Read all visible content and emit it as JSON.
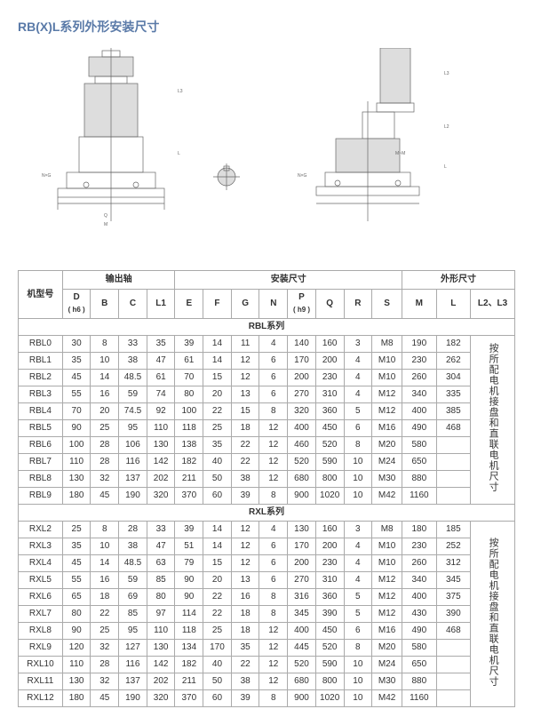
{
  "title": "RB(X)L系列外形安装尺寸",
  "headers": {
    "model": "机型号",
    "groups": {
      "shaft": "输出轴",
      "mount": "安装尺寸",
      "outer": "外形尺寸"
    },
    "cols": {
      "D": "D",
      "D_sub": "( h6 )",
      "B": "B",
      "C": "C",
      "L1": "L1",
      "E": "E",
      "F": "F",
      "G": "G",
      "N": "N",
      "P": "P",
      "P_sub": "( h9 )",
      "Q": "Q",
      "R": "R",
      "S": "S",
      "M": "M",
      "L": "L",
      "L2L3": "L2、L3"
    }
  },
  "sections": {
    "rbl": {
      "title": "RBL系列",
      "side": "按所配电机接盘和直联电机尺寸"
    },
    "rxl": {
      "title": "RXL系列",
      "side": "按所配电机接盘和直联电机尺寸"
    }
  },
  "rbl_rows": [
    {
      "m": "RBL0",
      "D": "30",
      "B": "8",
      "C": "33",
      "L1": "35",
      "E": "39",
      "F": "14",
      "G": "11",
      "N": "4",
      "P": "140",
      "Q": "160",
      "R": "3",
      "S": "M8",
      "M": "190",
      "L": "182"
    },
    {
      "m": "RBL1",
      "D": "35",
      "B": "10",
      "C": "38",
      "L1": "47",
      "E": "61",
      "F": "14",
      "G": "12",
      "N": "6",
      "P": "170",
      "Q": "200",
      "R": "4",
      "S": "M10",
      "M": "230",
      "L": "262"
    },
    {
      "m": "RBL2",
      "D": "45",
      "B": "14",
      "C": "48.5",
      "L1": "61",
      "E": "70",
      "F": "15",
      "G": "12",
      "N": "6",
      "P": "200",
      "Q": "230",
      "R": "4",
      "S": "M10",
      "M": "260",
      "L": "304"
    },
    {
      "m": "RBL3",
      "D": "55",
      "B": "16",
      "C": "59",
      "L1": "74",
      "E": "80",
      "F": "20",
      "G": "13",
      "N": "6",
      "P": "270",
      "Q": "310",
      "R": "4",
      "S": "M12",
      "M": "340",
      "L": "335"
    },
    {
      "m": "RBL4",
      "D": "70",
      "B": "20",
      "C": "74.5",
      "L1": "92",
      "E": "100",
      "F": "22",
      "G": "15",
      "N": "8",
      "P": "320",
      "Q": "360",
      "R": "5",
      "S": "M12",
      "M": "400",
      "L": "385"
    },
    {
      "m": "RBL5",
      "D": "90",
      "B": "25",
      "C": "95",
      "L1": "110",
      "E": "118",
      "F": "25",
      "G": "18",
      "N": "12",
      "P": "400",
      "Q": "450",
      "R": "6",
      "S": "M16",
      "M": "490",
      "L": "468"
    },
    {
      "m": "RBL6",
      "D": "100",
      "B": "28",
      "C": "106",
      "L1": "130",
      "E": "138",
      "F": "35",
      "G": "22",
      "N": "12",
      "P": "460",
      "Q": "520",
      "R": "8",
      "S": "M20",
      "M": "580",
      "L": ""
    },
    {
      "m": "RBL7",
      "D": "110",
      "B": "28",
      "C": "116",
      "L1": "142",
      "E": "182",
      "F": "40",
      "G": "22",
      "N": "12",
      "P": "520",
      "Q": "590",
      "R": "10",
      "S": "M24",
      "M": "650",
      "L": ""
    },
    {
      "m": "RBL8",
      "D": "130",
      "B": "32",
      "C": "137",
      "L1": "202",
      "E": "211",
      "F": "50",
      "G": "38",
      "N": "12",
      "P": "680",
      "Q": "800",
      "R": "10",
      "S": "M30",
      "M": "880",
      "L": ""
    },
    {
      "m": "RBL9",
      "D": "180",
      "B": "45",
      "C": "190",
      "L1": "320",
      "E": "370",
      "F": "60",
      "G": "39",
      "N": "8",
      "P": "900",
      "Q": "1020",
      "R": "10",
      "S": "M42",
      "M": "1160",
      "L": ""
    }
  ],
  "rxl_rows": [
    {
      "m": "RXL2",
      "D": "25",
      "B": "8",
      "C": "28",
      "L1": "33",
      "E": "39",
      "F": "14",
      "G": "12",
      "N": "4",
      "P": "130",
      "Q": "160",
      "R": "3",
      "S": "M8",
      "M": "180",
      "L": "185"
    },
    {
      "m": "RXL3",
      "D": "35",
      "B": "10",
      "C": "38",
      "L1": "47",
      "E": "51",
      "F": "14",
      "G": "12",
      "N": "6",
      "P": "170",
      "Q": "200",
      "R": "4",
      "S": "M10",
      "M": "230",
      "L": "252"
    },
    {
      "m": "RXL4",
      "D": "45",
      "B": "14",
      "C": "48.5",
      "L1": "63",
      "E": "79",
      "F": "15",
      "G": "12",
      "N": "6",
      "P": "200",
      "Q": "230",
      "R": "4",
      "S": "M10",
      "M": "260",
      "L": "312"
    },
    {
      "m": "RXL5",
      "D": "55",
      "B": "16",
      "C": "59",
      "L1": "85",
      "E": "90",
      "F": "20",
      "G": "13",
      "N": "6",
      "P": "270",
      "Q": "310",
      "R": "4",
      "S": "M12",
      "M": "340",
      "L": "345"
    },
    {
      "m": "RXL6",
      "D": "65",
      "B": "18",
      "C": "69",
      "L1": "80",
      "E": "90",
      "F": "22",
      "G": "16",
      "N": "8",
      "P": "316",
      "Q": "360",
      "R": "5",
      "S": "M12",
      "M": "400",
      "L": "375"
    },
    {
      "m": "RXL7",
      "D": "80",
      "B": "22",
      "C": "85",
      "L1": "97",
      "E": "114",
      "F": "22",
      "G": "18",
      "N": "8",
      "P": "345",
      "Q": "390",
      "R": "5",
      "S": "M12",
      "M": "430",
      "L": "390"
    },
    {
      "m": "RXL8",
      "D": "90",
      "B": "25",
      "C": "95",
      "L1": "110",
      "E": "118",
      "F": "25",
      "G": "18",
      "N": "12",
      "P": "400",
      "Q": "450",
      "R": "6",
      "S": "M16",
      "M": "490",
      "L": "468"
    },
    {
      "m": "RXL9",
      "D": "120",
      "B": "32",
      "C": "127",
      "L1": "130",
      "E": "134",
      "F": "170",
      "G": "35",
      "N": "12",
      "P": "445",
      "Q": "520",
      "R": "8",
      "S": "M20",
      "M": "580",
      "L": ""
    },
    {
      "m": "RXL10",
      "D": "110",
      "B": "28",
      "C": "116",
      "L1": "142",
      "E": "182",
      "F": "40",
      "G": "22",
      "N": "12",
      "P": "520",
      "Q": "590",
      "R": "10",
      "S": "M24",
      "M": "650",
      "L": ""
    },
    {
      "m": "RXL11",
      "D": "130",
      "B": "32",
      "C": "137",
      "L1": "202",
      "E": "211",
      "F": "50",
      "G": "38",
      "N": "12",
      "P": "680",
      "Q": "800",
      "R": "10",
      "S": "M30",
      "M": "880",
      "L": ""
    },
    {
      "m": "RXL12",
      "D": "180",
      "B": "45",
      "C": "190",
      "L1": "320",
      "E": "370",
      "F": "60",
      "G": "39",
      "N": "8",
      "P": "900",
      "Q": "1020",
      "R": "10",
      "S": "M42",
      "M": "1160",
      "L": ""
    }
  ],
  "colors": {
    "heading": "#5a7aa8",
    "border": "#aaaaaa",
    "diagram": "#666666"
  }
}
